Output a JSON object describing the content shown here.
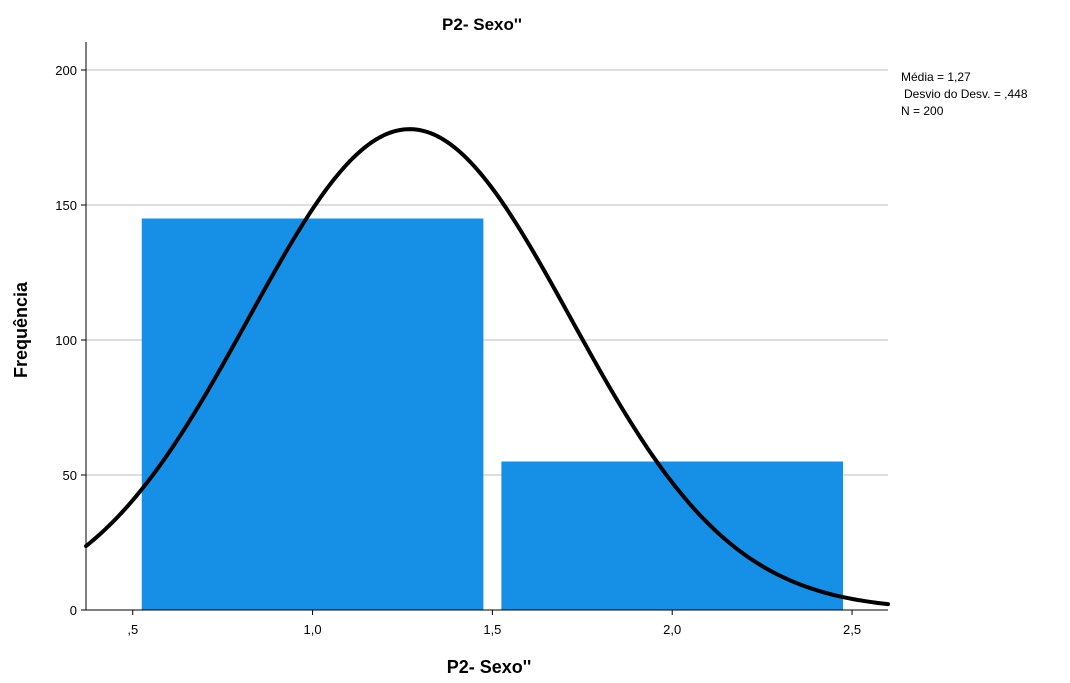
{
  "chart_data": {
    "type": "bar",
    "title": "P2- Sexo''",
    "xlabel": "P2- Sexo''",
    "ylabel": "Frequência",
    "x_bins": [
      {
        "from": 0.5,
        "to": 1.5,
        "value": 145
      },
      {
        "from": 1.5,
        "to": 2.5,
        "value": 55
      }
    ],
    "xlim": [
      0.37,
      2.6
    ],
    "ylim": [
      0,
      200
    ],
    "x_ticks": [
      {
        "value": 0.5,
        "label": ",5"
      },
      {
        "value": 1.0,
        "label": "1,0"
      },
      {
        "value": 1.5,
        "label": "1,5"
      },
      {
        "value": 2.0,
        "label": "2,0"
      },
      {
        "value": 2.5,
        "label": "2,5"
      }
    ],
    "y_ticks": [
      {
        "value": 0,
        "label": "0"
      },
      {
        "value": 50,
        "label": "50"
      },
      {
        "value": 100,
        "label": "100"
      },
      {
        "value": 150,
        "label": "150"
      },
      {
        "value": 200,
        "label": "200"
      }
    ],
    "grid": true,
    "bar_color": "#1590e6",
    "curve_color": "#000000",
    "normal_curve": {
      "mean": 1.27,
      "sd": 0.448,
      "n": 200,
      "bin_width": 1
    },
    "stats": {
      "mean_text": "Média = 1,27",
      "sd_text": "Desvio do Desv. = ,448",
      "n_text": "N = 200"
    },
    "legend_position": "top-right"
  }
}
